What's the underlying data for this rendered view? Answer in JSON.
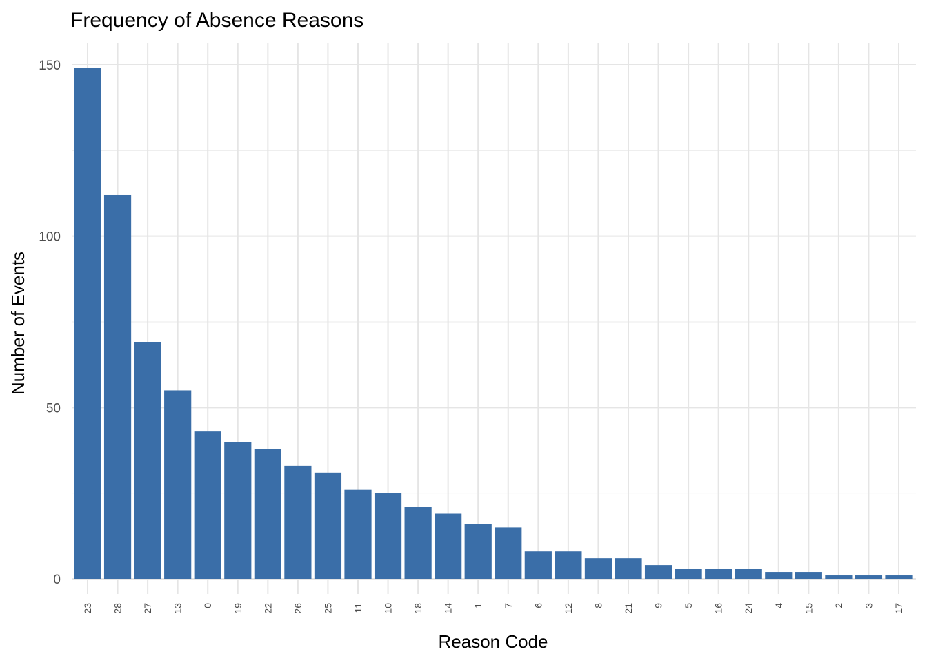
{
  "chart_data": {
    "type": "bar",
    "title": "Frequency of Absence Reasons",
    "xlabel": "Reason Code",
    "ylabel": "Number of Events",
    "categories": [
      "23",
      "28",
      "27",
      "13",
      "0",
      "19",
      "22",
      "26",
      "25",
      "11",
      "10",
      "18",
      "14",
      "1",
      "7",
      "6",
      "12",
      "8",
      "21",
      "9",
      "5",
      "16",
      "24",
      "4",
      "15",
      "2",
      "3",
      "17"
    ],
    "values": [
      149,
      112,
      69,
      55,
      43,
      40,
      38,
      33,
      31,
      26,
      25,
      21,
      19,
      16,
      15,
      8,
      8,
      6,
      6,
      4,
      3,
      3,
      3,
      2,
      2,
      1,
      1,
      1
    ],
    "ylim": [
      0,
      150
    ],
    "yticks": [
      0,
      50,
      100,
      150
    ],
    "grid": true,
    "bar_color": "#3A6EA8"
  }
}
